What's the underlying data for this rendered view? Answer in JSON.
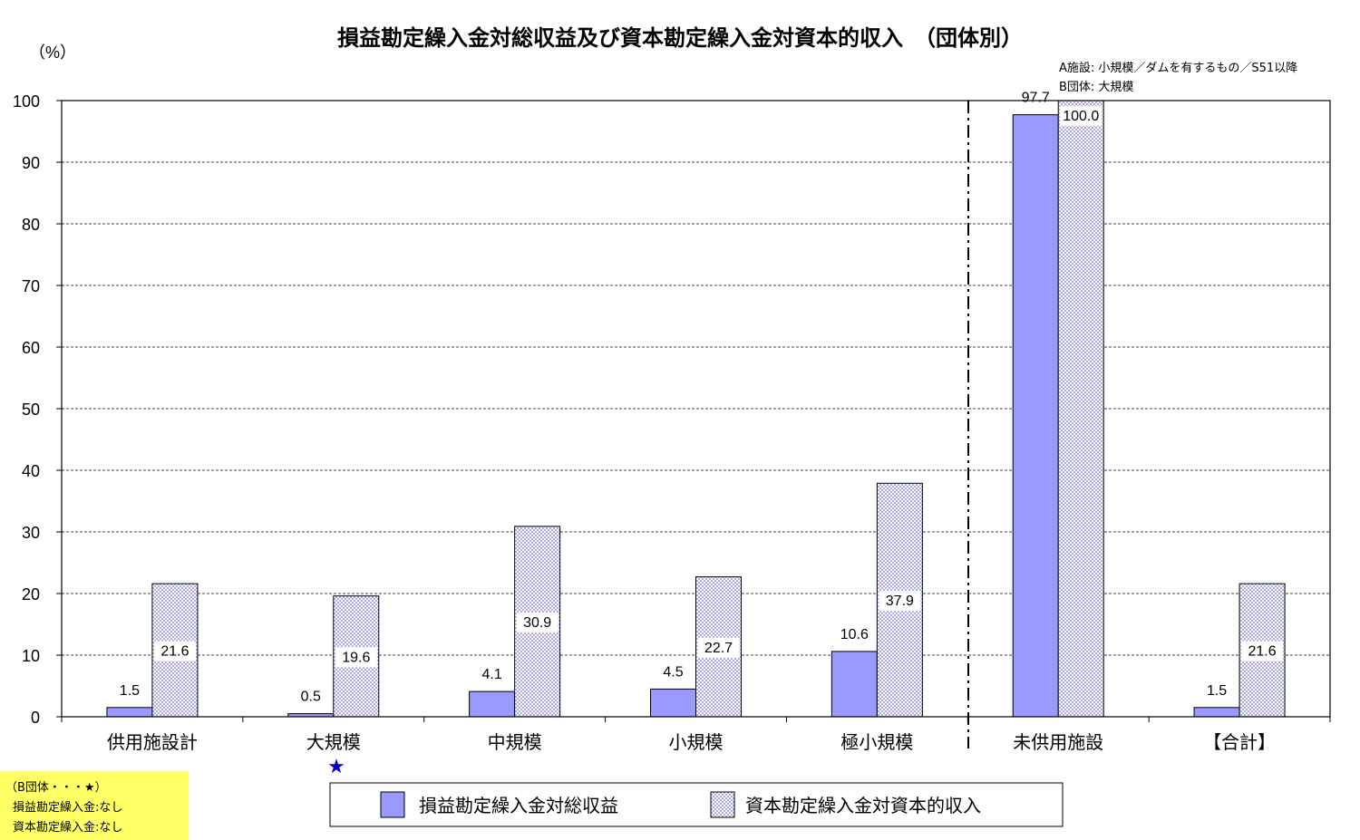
{
  "chart_data": {
    "type": "bar",
    "title": "損益勘定繰入金対総収益及び資本勘定繰入金対資本的収入　（団体別）",
    "ylabel": "（%）",
    "ylim": [
      0,
      100
    ],
    "yticks": [
      0,
      10,
      20,
      30,
      40,
      50,
      60,
      70,
      80,
      90,
      100
    ],
    "grid": true,
    "legend_position": "bottom",
    "categories": [
      "供用施設計",
      "大規模",
      "中規模",
      "小規模",
      "極小規模",
      "未供用施設",
      "【合計】"
    ],
    "series": [
      {
        "name": "損益勘定繰入金対総収益",
        "values": [
          1.5,
          0.5,
          4.1,
          4.5,
          10.6,
          97.7,
          1.5
        ],
        "labels": [
          "1.5",
          "0.5",
          "4.1",
          "4.5",
          "10.6",
          "97.7",
          "1.5"
        ],
        "color": "#9999ff"
      },
      {
        "name": "資本勘定繰入金対資本的収入",
        "values": [
          21.6,
          19.6,
          30.9,
          22.7,
          37.9,
          100.0,
          21.6
        ],
        "labels": [
          "21.6",
          "19.6",
          "30.9",
          "22.7",
          "37.9",
          "100.0",
          "21.6"
        ],
        "color": "#c8c8f0"
      }
    ],
    "divider_after_category": "極小規模",
    "star_marker": {
      "symbol": "★",
      "category": "大規模",
      "color": "#0000cc"
    },
    "annotation_lines": [
      "A施設: 小規模／ダムを有するもの／S51以降",
      "B団体: 大規模"
    ]
  },
  "footnote": {
    "lines": [
      "（B団体・・・★）",
      "損益勘定繰入金:なし",
      "資本勘定繰入金:なし"
    ],
    "background": "#ffff66"
  }
}
